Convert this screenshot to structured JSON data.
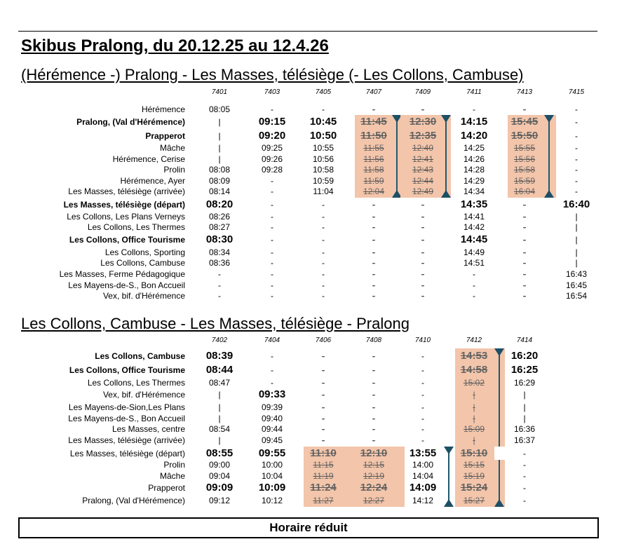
{
  "title": "Skibus Pralong, du 20.12.25 au 12.4.26",
  "colors": {
    "cancelled_shade": "#f3c5aa",
    "arrow": "#1d4f66"
  },
  "tables": [
    {
      "heading": "(Hérémence -) Pralong - Les Masses, télésiège (- Les Collons, Cambuse)",
      "trips": [
        "7401",
        "7403",
        "7405",
        "7407",
        "7409",
        "7411",
        "7413",
        "7415"
      ],
      "cancelled_trips": [
        "7407",
        "7409",
        "7413"
      ],
      "rows": [
        {
          "stop": "Hérémence",
          "label_bold": false,
          "values_bold": false,
          "times": [
            "08:05",
            "-",
            "-",
            "-",
            "-",
            "-",
            "-",
            "-"
          ]
        },
        {
          "stop": "Pralong, (Val d'Hérémence)",
          "label_bold": true,
          "values_bold": true,
          "times": [
            "|",
            "09:15",
            "10:45",
            "11:45",
            "12:30",
            "14:15",
            "15:45",
            "-"
          ]
        },
        {
          "stop": "Prapperot",
          "label_bold": true,
          "values_bold": true,
          "times": [
            "|",
            "09:20",
            "10:50",
            "11:50",
            "12:35",
            "14:20",
            "15:50",
            "-"
          ]
        },
        {
          "stop": "Mâche",
          "label_bold": false,
          "values_bold": false,
          "times": [
            "|",
            "09:25",
            "10:55",
            "11:55",
            "12:40",
            "14:25",
            "15:55",
            "-"
          ]
        },
        {
          "stop": "Hérémence, Cerise",
          "label_bold": false,
          "values_bold": false,
          "times": [
            "|",
            "09:26",
            "10:56",
            "11:56",
            "12:41",
            "14:26",
            "15:56",
            "-"
          ]
        },
        {
          "stop": "Prolin",
          "label_bold": false,
          "values_bold": false,
          "times": [
            "08:08",
            "09:28",
            "10:58",
            "11:58",
            "12:43",
            "14:28",
            "15:58",
            "-"
          ]
        },
        {
          "stop": "Hérémence, Ayer",
          "label_bold": false,
          "values_bold": false,
          "times": [
            "08:09",
            "-",
            "10:59",
            "11:59",
            "12:44",
            "14:29",
            "15:59",
            "-"
          ]
        },
        {
          "stop": "Les Masses, télésiège (arrivée)",
          "label_bold": false,
          "values_bold": false,
          "times": [
            "08:14",
            "-",
            "11:04",
            "12:04",
            "12:49",
            "14:34",
            "16:04",
            "-"
          ]
        },
        {
          "stop": "Les Masses, télésiège (départ)",
          "label_bold": true,
          "values_bold": true,
          "times": [
            "08:20",
            "-",
            "-",
            "-",
            "-",
            "14:35",
            "-",
            "16:40"
          ]
        },
        {
          "stop": "Les Collons, Les Plans Verneys",
          "label_bold": false,
          "values_bold": false,
          "times": [
            "08:26",
            "-",
            "-",
            "-",
            "-",
            "14:41",
            "-",
            "|"
          ]
        },
        {
          "stop": "Les Collons, Les Thermes",
          "label_bold": false,
          "values_bold": false,
          "times": [
            "08:27",
            "-",
            "-",
            "-",
            "-",
            "14:42",
            "-",
            "|"
          ]
        },
        {
          "stop": "Les Collons, Office Tourisme",
          "label_bold": true,
          "values_bold": true,
          "times": [
            "08:30",
            "-",
            "-",
            "-",
            "-",
            "14:45",
            "-",
            "|"
          ]
        },
        {
          "stop": "Les Collons, Sporting",
          "label_bold": false,
          "values_bold": false,
          "times": [
            "08:34",
            "-",
            "-",
            "-",
            "-",
            "14:49",
            "-",
            "|"
          ]
        },
        {
          "stop": "Les Collons, Cambuse",
          "label_bold": false,
          "values_bold": false,
          "times": [
            "08:36",
            "-",
            "-",
            "-",
            "-",
            "14:51",
            "-",
            "|"
          ]
        },
        {
          "stop": "Les Masses, Ferme Pédagogique",
          "label_bold": false,
          "values_bold": false,
          "times": [
            "-",
            "-",
            "-",
            "-",
            "-",
            "-",
            "-",
            "16:43"
          ]
        },
        {
          "stop": "Les Mayens-de-S., Bon Accueil",
          "label_bold": false,
          "values_bold": false,
          "times": [
            "-",
            "-",
            "-",
            "-",
            "-",
            "-",
            "-",
            "16:45"
          ]
        },
        {
          "stop": "Vex, bif. d'Hérémence",
          "label_bold": false,
          "values_bold": false,
          "times": [
            "-",
            "-",
            "-",
            "-",
            "-",
            "-",
            "-",
            "16:54"
          ]
        }
      ]
    },
    {
      "heading": "Les Collons, Cambuse - Les Masses, télésiège - Pralong",
      "trips": [
        "7402",
        "7404",
        "7406",
        "7408",
        "7410",
        "7412",
        "7414"
      ],
      "cancelled_trips": [
        "7406",
        "7408",
        "7412"
      ],
      "rows": [
        {
          "stop": "Les Collons, Cambuse",
          "label_bold": true,
          "values_bold": true,
          "times": [
            "08:39",
            "-",
            "-",
            "-",
            "-",
            "14:53",
            "16:20"
          ]
        },
        {
          "stop": "Les Collons, Office Tourisme",
          "label_bold": true,
          "values_bold": true,
          "times": [
            "08:44",
            "-",
            "-",
            "-",
            "-",
            "14:58",
            "16:25"
          ]
        },
        {
          "stop": "Les Collons, Les Thermes",
          "label_bold": false,
          "values_bold": false,
          "times": [
            "08:47",
            "-",
            "-",
            "-",
            "-",
            "15:02",
            "16:29"
          ]
        },
        {
          "stop": "Vex, bif. d'Hérémence",
          "label_bold": false,
          "values_bold": false,
          "bold_cells": [
            1
          ],
          "times": [
            "|",
            "09:33",
            "-",
            "-",
            "-",
            "|",
            "|"
          ]
        },
        {
          "stop": "Les Mayens-de-Sion,Les Plans",
          "label_bold": false,
          "values_bold": false,
          "times": [
            "|",
            "09:39",
            "-",
            "-",
            "-",
            "|",
            "|"
          ]
        },
        {
          "stop": "Les Mayens-de-S., Bon Accueil",
          "label_bold": false,
          "values_bold": false,
          "times": [
            "|",
            "09:40",
            "-",
            "-",
            "-",
            "|",
            "|"
          ]
        },
        {
          "stop": "Les Masses, centre",
          "label_bold": false,
          "values_bold": false,
          "times": [
            "08:54",
            "09:44",
            "-",
            "-",
            "-",
            "15:09",
            "16:36"
          ]
        },
        {
          "stop": "Les Masses, télésiège (arrivée)",
          "label_bold": false,
          "values_bold": false,
          "times": [
            "|",
            "09:45",
            "-",
            "-",
            "-",
            "|",
            "16:37"
          ]
        },
        {
          "stop": "Les Masses, télésiège (départ)",
          "label_bold": false,
          "values_bold": true,
          "times": [
            "08:55",
            "09:55",
            "11:10",
            "12:10",
            "13:55",
            "15:10",
            "-"
          ]
        },
        {
          "stop": "Prolin",
          "label_bold": false,
          "values_bold": false,
          "times": [
            "09:00",
            "10:00",
            "11:15",
            "12:15",
            "14:00",
            "15:15",
            "-"
          ]
        },
        {
          "stop": "Mâche",
          "label_bold": false,
          "values_bold": false,
          "times": [
            "09:04",
            "10:04",
            "11:19",
            "12:19",
            "14:04",
            "15:19",
            "-"
          ]
        },
        {
          "stop": "Prapperot",
          "label_bold": false,
          "values_bold": true,
          "times": [
            "09:09",
            "10:09",
            "11:24",
            "12:24",
            "14:09",
            "15:24",
            "-"
          ]
        },
        {
          "stop": "Pralong, (Val d'Hérémence)",
          "label_bold": false,
          "values_bold": false,
          "times": [
            "09:12",
            "10:12",
            "11:27",
            "12:27",
            "14:12",
            "15:27",
            "-"
          ]
        }
      ]
    }
  ],
  "footer": "Horaire réduit"
}
